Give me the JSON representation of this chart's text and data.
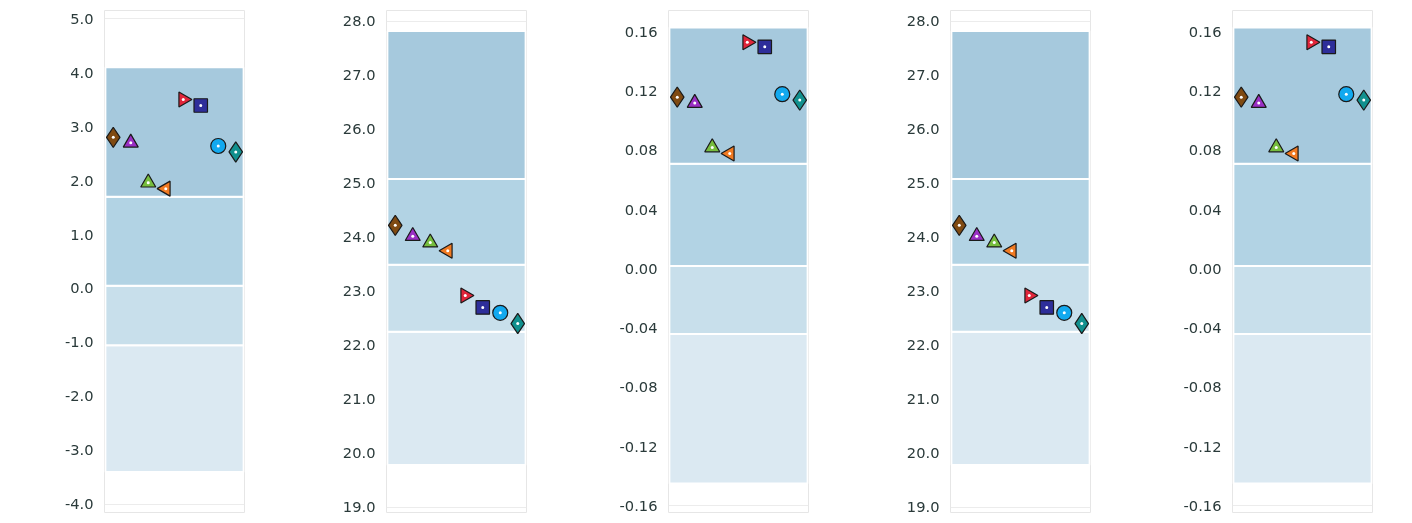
{
  "chart_data": [
    {
      "type": "scatter",
      "categories": [
        null,
        null,
        null,
        null,
        null,
        null,
        null,
        null
      ],
      "ylim": [
        -4.15,
        5.15
      ],
      "yticks": [
        {
          "value": -4,
          "label": "-4.0"
        },
        {
          "value": -3,
          "label": "-3.0"
        },
        {
          "value": -2,
          "label": "-2.0"
        },
        {
          "value": -1,
          "label": "-1.0"
        },
        {
          "value": 0,
          "label": "0.0"
        },
        {
          "value": 1,
          "label": "1.0"
        },
        {
          "value": 2,
          "label": "2.0"
        },
        {
          "value": 3,
          "label": "3.0"
        },
        {
          "value": 4,
          "label": "4.0"
        },
        {
          "value": 5,
          "label": "5.0"
        }
      ],
      "bands": [
        {
          "axis": "y",
          "from": -3.4,
          "to": -1.05,
          "color": "#dbe9f2"
        },
        {
          "axis": "y",
          "from": -1.05,
          "to": 0.05,
          "color": "#c8dfeb"
        },
        {
          "axis": "y",
          "from": 0.05,
          "to": 1.7,
          "color": "#b2d3e4"
        },
        {
          "axis": "y",
          "from": 1.7,
          "to": 4.1,
          "color": "#a6c9dd"
        }
      ],
      "series": [
        {
          "color": "#7f4a12",
          "marker": "diamond",
          "values": [
            2.8,
            null,
            null,
            null,
            null,
            null,
            null,
            null
          ]
        },
        {
          "color": "#9a2fc4",
          "marker": "triangle",
          "values": [
            null,
            2.7,
            null,
            null,
            null,
            null,
            null,
            null
          ]
        },
        {
          "color": "#76bd3e",
          "marker": "triangle",
          "values": [
            null,
            null,
            1.96,
            null,
            null,
            null,
            null,
            null
          ]
        },
        {
          "color": "#f07a22",
          "marker": "triangle_left",
          "values": [
            null,
            null,
            null,
            1.85,
            null,
            null,
            null,
            null
          ]
        },
        {
          "color": "#e0253a",
          "marker": "triangle_right",
          "values": [
            null,
            null,
            null,
            null,
            3.5,
            null,
            null,
            null
          ]
        },
        {
          "color": "#2e2e9a",
          "marker": "square",
          "values": [
            null,
            null,
            null,
            null,
            null,
            3.39,
            null,
            null
          ]
        },
        {
          "color": "#12a9ef",
          "marker": "circle",
          "values": [
            null,
            null,
            null,
            null,
            null,
            null,
            2.64,
            null
          ]
        },
        {
          "color": "#11908e",
          "marker": "diamond",
          "values": [
            null,
            null,
            null,
            null,
            null,
            null,
            null,
            2.53
          ]
        }
      ],
      "grid": "y",
      "tick_labels": "y"
    },
    {
      "type": "scatter",
      "categories": [
        null,
        null,
        null,
        null,
        null,
        null,
        null,
        null
      ],
      "ylim": [
        18.9,
        28.2
      ],
      "yticks": [
        {
          "value": 19,
          "label": "19.0"
        },
        {
          "value": 20,
          "label": "20.0"
        },
        {
          "value": 21,
          "label": "21.0"
        },
        {
          "value": 22,
          "label": "22.0"
        },
        {
          "value": 23,
          "label": "23.0"
        },
        {
          "value": 24,
          "label": "24.0"
        },
        {
          "value": 25,
          "label": "25.0"
        },
        {
          "value": 26,
          "label": "26.0"
        },
        {
          "value": 27,
          "label": "27.0"
        },
        {
          "value": 28,
          "label": "28.0"
        }
      ],
      "bands": [
        {
          "axis": "y",
          "from": 19.78,
          "to": 22.25,
          "color": "#dbe9f2"
        },
        {
          "axis": "y",
          "from": 22.25,
          "to": 23.49,
          "color": "#c8dfeb"
        },
        {
          "axis": "y",
          "from": 23.49,
          "to": 25.08,
          "color": "#b2d3e4"
        },
        {
          "axis": "y",
          "from": 25.08,
          "to": 27.82,
          "color": "#a6c9dd"
        }
      ],
      "series": [
        {
          "color": "#7f4a12",
          "marker": "diamond",
          "values": [
            24.22,
            null,
            null,
            null,
            null,
            null,
            null,
            null
          ]
        },
        {
          "color": "#9a2fc4",
          "marker": "triangle",
          "values": [
            null,
            24.02,
            null,
            null,
            null,
            null,
            null,
            null
          ]
        },
        {
          "color": "#76bd3e",
          "marker": "triangle",
          "values": [
            null,
            null,
            23.9,
            null,
            null,
            null,
            null,
            null
          ]
        },
        {
          "color": "#f07a22",
          "marker": "triangle_left",
          "values": [
            null,
            null,
            null,
            23.75,
            null,
            null,
            null,
            null
          ]
        },
        {
          "color": "#e0253a",
          "marker": "triangle_right",
          "values": [
            null,
            null,
            null,
            null,
            22.92,
            null,
            null,
            null
          ]
        },
        {
          "color": "#2e2e9a",
          "marker": "square",
          "values": [
            null,
            null,
            null,
            null,
            null,
            22.7,
            null,
            null
          ]
        },
        {
          "color": "#12a9ef",
          "marker": "circle",
          "values": [
            null,
            null,
            null,
            null,
            null,
            null,
            22.6,
            null
          ]
        },
        {
          "color": "#11908e",
          "marker": "diamond",
          "values": [
            null,
            null,
            null,
            null,
            null,
            null,
            null,
            22.4
          ]
        }
      ],
      "grid": "y",
      "tick_labels": "y"
    },
    {
      "type": "scatter",
      "categories": [
        null,
        null,
        null,
        null,
        null,
        null,
        null,
        null
      ],
      "ylim": [
        -0.1645,
        0.1745
      ],
      "yticks": [
        {
          "value": -0.16,
          "label": "-0.16"
        },
        {
          "value": -0.12,
          "label": "-0.12"
        },
        {
          "value": -0.08,
          "label": "-0.08"
        },
        {
          "value": -0.04,
          "label": "-0.04"
        },
        {
          "value": 0,
          "label": "0.00"
        },
        {
          "value": 0.04,
          "label": "0.04"
        },
        {
          "value": 0.08,
          "label": "0.08"
        },
        {
          "value": 0.12,
          "label": "0.12"
        },
        {
          "value": 0.16,
          "label": "0.16"
        }
      ],
      "bands": [
        {
          "axis": "y",
          "from": -0.145,
          "to": -0.044,
          "color": "#dbe9f2"
        },
        {
          "axis": "y",
          "from": -0.044,
          "to": 0.002,
          "color": "#c8dfeb"
        },
        {
          "axis": "y",
          "from": 0.002,
          "to": 0.071,
          "color": "#b2d3e4"
        },
        {
          "axis": "y",
          "from": 0.071,
          "to": 0.163,
          "color": "#a6c9dd"
        }
      ],
      "series": [
        {
          "color": "#7f4a12",
          "marker": "diamond",
          "values": [
            0.116,
            null,
            null,
            null,
            null,
            null,
            null,
            null
          ]
        },
        {
          "color": "#9a2fc4",
          "marker": "triangle",
          "values": [
            null,
            0.112,
            null,
            null,
            null,
            null,
            null,
            null
          ]
        },
        {
          "color": "#76bd3e",
          "marker": "triangle",
          "values": [
            null,
            null,
            0.082,
            null,
            null,
            null,
            null,
            null
          ]
        },
        {
          "color": "#f07a22",
          "marker": "triangle_left",
          "values": [
            null,
            null,
            null,
            0.078,
            null,
            null,
            null,
            null
          ]
        },
        {
          "color": "#e0253a",
          "marker": "triangle_right",
          "values": [
            null,
            null,
            null,
            null,
            0.153,
            null,
            null,
            null
          ]
        },
        {
          "color": "#2e2e9a",
          "marker": "square",
          "values": [
            null,
            null,
            null,
            null,
            null,
            0.15,
            null,
            null
          ]
        },
        {
          "color": "#12a9ef",
          "marker": "circle",
          "values": [
            null,
            null,
            null,
            null,
            null,
            null,
            0.118,
            null
          ]
        },
        {
          "color": "#11908e",
          "marker": "diamond",
          "values": [
            null,
            null,
            null,
            null,
            null,
            null,
            null,
            0.114
          ]
        }
      ],
      "grid": "y",
      "tick_labels": "y"
    },
    {
      "type": "scatter",
      "categories": [
        null,
        null,
        null,
        null,
        null,
        null,
        null,
        null
      ],
      "ylim": [
        18.9,
        28.2
      ],
      "yticks": [
        {
          "value": 19,
          "label": "19.0"
        },
        {
          "value": 20,
          "label": "20.0"
        },
        {
          "value": 21,
          "label": "21.0"
        },
        {
          "value": 22,
          "label": "22.0"
        },
        {
          "value": 23,
          "label": "23.0"
        },
        {
          "value": 24,
          "label": "24.0"
        },
        {
          "value": 25,
          "label": "25.0"
        },
        {
          "value": 26,
          "label": "26.0"
        },
        {
          "value": 27,
          "label": "27.0"
        },
        {
          "value": 28,
          "label": "28.0"
        }
      ],
      "bands": [
        {
          "axis": "y",
          "from": 19.78,
          "to": 22.25,
          "color": "#dbe9f2"
        },
        {
          "axis": "y",
          "from": 22.25,
          "to": 23.49,
          "color": "#c8dfeb"
        },
        {
          "axis": "y",
          "from": 23.49,
          "to": 25.08,
          "color": "#b2d3e4"
        },
        {
          "axis": "y",
          "from": 25.08,
          "to": 27.82,
          "color": "#a6c9dd"
        }
      ],
      "series": [
        {
          "color": "#7f4a12",
          "marker": "diamond",
          "values": [
            24.22,
            null,
            null,
            null,
            null,
            null,
            null,
            null
          ]
        },
        {
          "color": "#9a2fc4",
          "marker": "triangle",
          "values": [
            null,
            24.02,
            null,
            null,
            null,
            null,
            null,
            null
          ]
        },
        {
          "color": "#76bd3e",
          "marker": "triangle",
          "values": [
            null,
            null,
            23.9,
            null,
            null,
            null,
            null,
            null
          ]
        },
        {
          "color": "#f07a22",
          "marker": "triangle_left",
          "values": [
            null,
            null,
            null,
            23.75,
            null,
            null,
            null,
            null
          ]
        },
        {
          "color": "#e0253a",
          "marker": "triangle_right",
          "values": [
            null,
            null,
            null,
            null,
            22.92,
            null,
            null,
            null
          ]
        },
        {
          "color": "#2e2e9a",
          "marker": "square",
          "values": [
            null,
            null,
            null,
            null,
            null,
            22.7,
            null,
            null
          ]
        },
        {
          "color": "#12a9ef",
          "marker": "circle",
          "values": [
            null,
            null,
            null,
            null,
            null,
            null,
            22.6,
            null
          ]
        },
        {
          "color": "#11908e",
          "marker": "diamond",
          "values": [
            null,
            null,
            null,
            null,
            null,
            null,
            null,
            22.4
          ]
        }
      ],
      "grid": "y",
      "tick_labels": "y"
    },
    {
      "type": "scatter",
      "categories": [
        null,
        null,
        null,
        null,
        null,
        null,
        null,
        null
      ],
      "ylim": [
        -0.1645,
        0.1745
      ],
      "yticks": [
        {
          "value": -0.16,
          "label": "-0.16"
        },
        {
          "value": -0.12,
          "label": "-0.12"
        },
        {
          "value": -0.08,
          "label": "-0.08"
        },
        {
          "value": -0.04,
          "label": "-0.04"
        },
        {
          "value": 0,
          "label": "0.00"
        },
        {
          "value": 0.04,
          "label": "0.04"
        },
        {
          "value": 0.08,
          "label": "0.08"
        },
        {
          "value": 0.12,
          "label": "0.12"
        },
        {
          "value": 0.16,
          "label": "0.16"
        }
      ],
      "bands": [
        {
          "axis": "y",
          "from": -0.145,
          "to": -0.044,
          "color": "#dbe9f2"
        },
        {
          "axis": "y",
          "from": -0.044,
          "to": 0.002,
          "color": "#c8dfeb"
        },
        {
          "axis": "y",
          "from": 0.002,
          "to": 0.071,
          "color": "#b2d3e4"
        },
        {
          "axis": "y",
          "from": 0.071,
          "to": 0.163,
          "color": "#a6c9dd"
        }
      ],
      "series": [
        {
          "color": "#7f4a12",
          "marker": "diamond",
          "values": [
            0.116,
            null,
            null,
            null,
            null,
            null,
            null,
            null
          ]
        },
        {
          "color": "#9a2fc4",
          "marker": "triangle",
          "values": [
            null,
            0.112,
            null,
            null,
            null,
            null,
            null,
            null
          ]
        },
        {
          "color": "#76bd3e",
          "marker": "triangle",
          "values": [
            null,
            null,
            0.082,
            null,
            null,
            null,
            null,
            null
          ]
        },
        {
          "color": "#f07a22",
          "marker": "triangle_left",
          "values": [
            null,
            null,
            null,
            0.078,
            null,
            null,
            null,
            null
          ]
        },
        {
          "color": "#e0253a",
          "marker": "triangle_right",
          "values": [
            null,
            null,
            null,
            null,
            0.153,
            null,
            null,
            null
          ]
        },
        {
          "color": "#2e2e9a",
          "marker": "square",
          "values": [
            null,
            null,
            null,
            null,
            null,
            0.15,
            null,
            null
          ]
        },
        {
          "color": "#12a9ef",
          "marker": "circle",
          "values": [
            null,
            null,
            null,
            null,
            null,
            null,
            0.118,
            null
          ]
        },
        {
          "color": "#11908e",
          "marker": "diamond",
          "values": [
            null,
            null,
            null,
            null,
            null,
            null,
            null,
            0.114
          ]
        }
      ],
      "grid": "y",
      "tick_labels": "y"
    }
  ]
}
